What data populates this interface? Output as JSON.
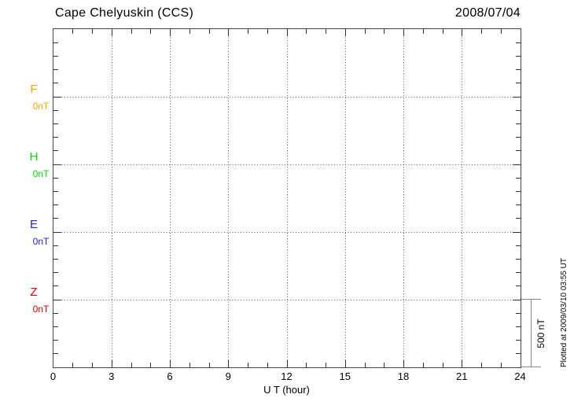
{
  "header": {
    "title": "Cape Chelyuskin (CCS)",
    "date": "2008/07/04"
  },
  "chart_data": {
    "type": "line",
    "title": "Cape Chelyuskin (CCS)",
    "date": "2008/07/04",
    "xlabel": "U T (hour)",
    "xlim": [
      0,
      24
    ],
    "x_major_ticks": [
      0,
      3,
      6,
      9,
      12,
      15,
      18,
      21,
      24
    ],
    "x_minor_step_hours": 1,
    "y_divisions": 5,
    "y_minor_per_division": 5,
    "nT_per_division": 500,
    "grid_style": "dotted",
    "grid_color": "#5a5a5a",
    "axis_color": "#444444",
    "series": [
      {
        "name": "F",
        "baseline_label": "0nT",
        "baseline_value_nT": 0,
        "color": "#FFA500",
        "x": [],
        "values": []
      },
      {
        "name": "H",
        "baseline_label": "0nT",
        "baseline_value_nT": 0,
        "color": "#00DD00",
        "x": [],
        "values": []
      },
      {
        "name": "E",
        "baseline_label": "0nT",
        "baseline_value_nT": 0,
        "color": "#2222DD",
        "x": [],
        "values": []
      },
      {
        "name": "Z",
        "baseline_label": "0nT",
        "baseline_value_nT": 0,
        "color": "#DD0000",
        "x": [],
        "values": []
      }
    ],
    "scale_bar": {
      "label": "500 nT",
      "color": "#888888"
    },
    "footnote": "Plotted at 2009/03/10 03:55 UT"
  }
}
